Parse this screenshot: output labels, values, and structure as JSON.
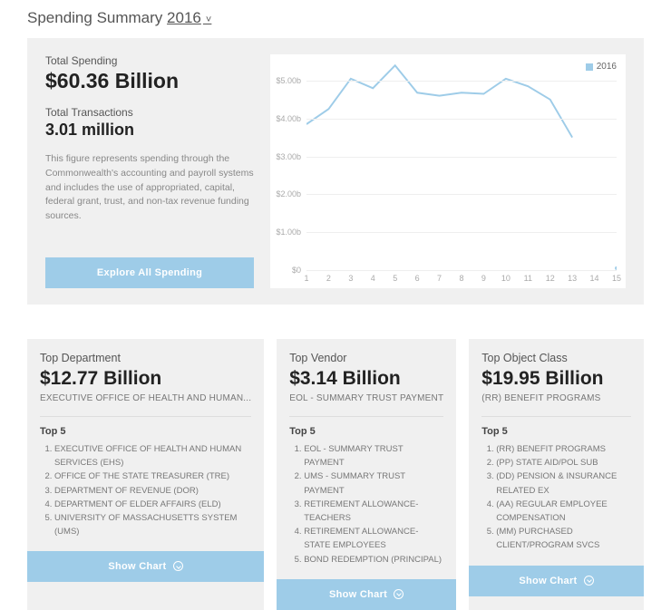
{
  "header": {
    "title_prefix": "Spending Summary",
    "year": "2016"
  },
  "hero": {
    "total_spending_label": "Total Spending",
    "total_spending_value": "$60.36 Billion",
    "total_transactions_label": "Total Transactions",
    "total_transactions_value": "3.01 million",
    "description": "This figure represents spending through the Commonwealth's accounting and payroll systems and includes the use of appropriated, capital, federal grant, trust, and non-tax revenue funding sources.",
    "explore_button": "Explore All Spending"
  },
  "chart": {
    "type": "line",
    "legend_label": "2016",
    "series_color": "#9ecce8",
    "background_color": "#ffffff",
    "grid_color": "#eeeeee",
    "axis_label_color": "#aaaaaa",
    "ylim": [
      0,
      5.5
    ],
    "y_ticks": [
      0,
      1.0,
      2.0,
      3.0,
      4.0,
      5.0
    ],
    "y_tick_labels": [
      "$0",
      "$1.00b",
      "$2.00b",
      "$3.00b",
      "$4.00b",
      "$5.00b"
    ],
    "x_values": [
      1,
      2,
      3,
      4,
      5,
      6,
      7,
      8,
      9,
      10,
      11,
      12,
      13,
      14,
      15
    ],
    "y_values": [
      3.85,
      4.25,
      5.05,
      4.8,
      5.4,
      4.68,
      4.6,
      4.68,
      4.65,
      5.05,
      4.85,
      4.5,
      3.5,
      null,
      null
    ],
    "line_width": 2,
    "axis_fontsize": 9
  },
  "cards": [
    {
      "title": "Top Department",
      "amount": "$12.77 Billion",
      "subtitle": "EXECUTIVE OFFICE OF HEALTH AND HUMAN...",
      "top5_label": "Top 5",
      "top5": [
        "EXECUTIVE OFFICE OF HEALTH AND HUMAN SERVICES (EHS)",
        "OFFICE OF THE STATE TREASURER (TRE)",
        "DEPARTMENT OF REVENUE (DOR)",
        "DEPARTMENT OF ELDER AFFAIRS (ELD)",
        "UNIVERSITY OF MASSACHUSETTS SYSTEM (UMS)"
      ],
      "button": "Show Chart"
    },
    {
      "title": "Top Vendor",
      "amount": "$3.14 Billion",
      "subtitle": "EOL - SUMMARY TRUST PAYMENT",
      "top5_label": "Top 5",
      "top5": [
        "EOL - SUMMARY TRUST PAYMENT",
        "UMS - SUMMARY TRUST PAYMENT",
        "RETIREMENT ALLOWANCE-TEACHERS",
        "RETIREMENT ALLOWANCE-STATE EMPLOYEES",
        "BOND REDEMPTION (PRINCIPAL)"
      ],
      "button": "Show Chart"
    },
    {
      "title": "Top Object Class",
      "amount": "$19.95 Billion",
      "subtitle": "(RR) BENEFIT PROGRAMS",
      "top5_label": "Top 5",
      "top5": [
        "(RR) BENEFIT PROGRAMS",
        "(PP) STATE AID/POL SUB",
        "(DD) PENSION & INSURANCE RELATED EX",
        "(AA) REGULAR EMPLOYEE COMPENSATION",
        "(MM) PURCHASED CLIENT/PROGRAM SVCS"
      ],
      "button": "Show Chart"
    }
  ]
}
